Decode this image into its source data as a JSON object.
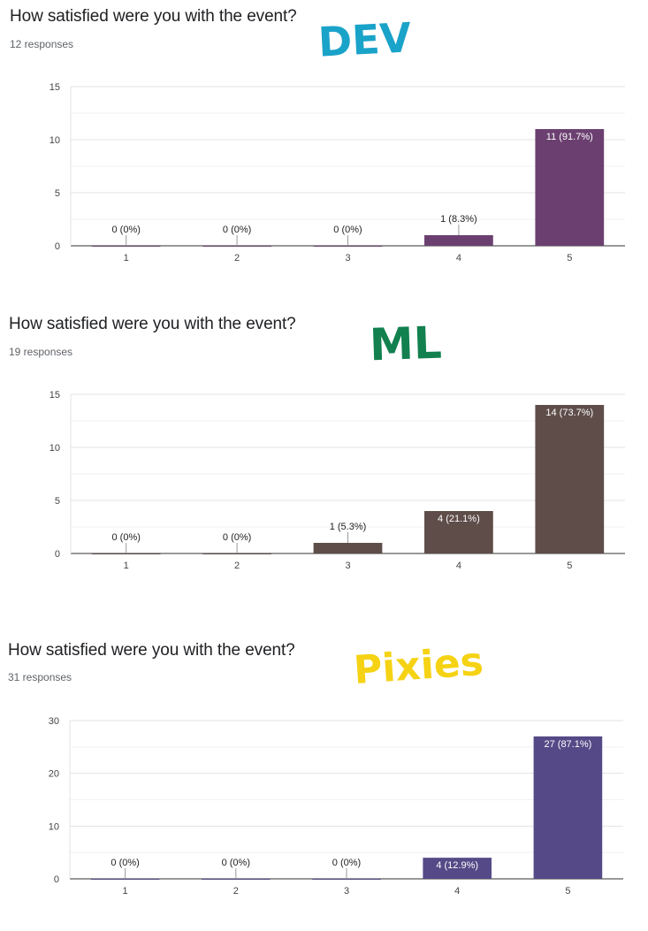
{
  "charts": [
    {
      "question": "How satisfied were you with the event?",
      "responses": "12 responses",
      "tag": "DEV",
      "tag_color": "#1aa3c9",
      "bar_color": "#6b4070"
    },
    {
      "question": "How satisfied were you with the event?",
      "responses": "19 responses",
      "tag": "ML",
      "tag_color": "#12804f",
      "bar_color": "#5e4d49"
    },
    {
      "question": "How satisfied were you with the event?",
      "responses": "31 responses",
      "tag": "Pixies",
      "tag_color": "#f5d314",
      "bar_color": "#554a87"
    }
  ],
  "chart_data": [
    {
      "type": "bar",
      "title": "How satisfied were you with the event?",
      "categories": [
        "1",
        "2",
        "3",
        "4",
        "5"
      ],
      "values": [
        0,
        0,
        0,
        1,
        11
      ],
      "labels": [
        "0 (0%)",
        "0 (0%)",
        "0 (0%)",
        "1 (8.3%)",
        "11 (91.7%)"
      ],
      "ylim": [
        0,
        15
      ],
      "yticks": [
        0,
        5,
        10,
        15
      ],
      "grid": true
    },
    {
      "type": "bar",
      "title": "How satisfied were you with the event?",
      "categories": [
        "1",
        "2",
        "3",
        "4",
        "5"
      ],
      "values": [
        0,
        0,
        1,
        4,
        14
      ],
      "labels": [
        "0 (0%)",
        "0 (0%)",
        "1 (5.3%)",
        "4 (21.1%)",
        "14 (73.7%)"
      ],
      "ylim": [
        0,
        15
      ],
      "yticks": [
        0,
        5,
        10,
        15
      ],
      "grid": true
    },
    {
      "type": "bar",
      "title": "How satisfied were you with the event?",
      "categories": [
        "1",
        "2",
        "3",
        "4",
        "5"
      ],
      "values": [
        0,
        0,
        0,
        4,
        27
      ],
      "labels": [
        "0 (0%)",
        "0 (0%)",
        "0 (0%)",
        "4 (12.9%)",
        "27 (87.1%)"
      ],
      "ylim": [
        0,
        30
      ],
      "yticks": [
        0,
        10,
        20,
        30
      ],
      "grid": true
    }
  ]
}
